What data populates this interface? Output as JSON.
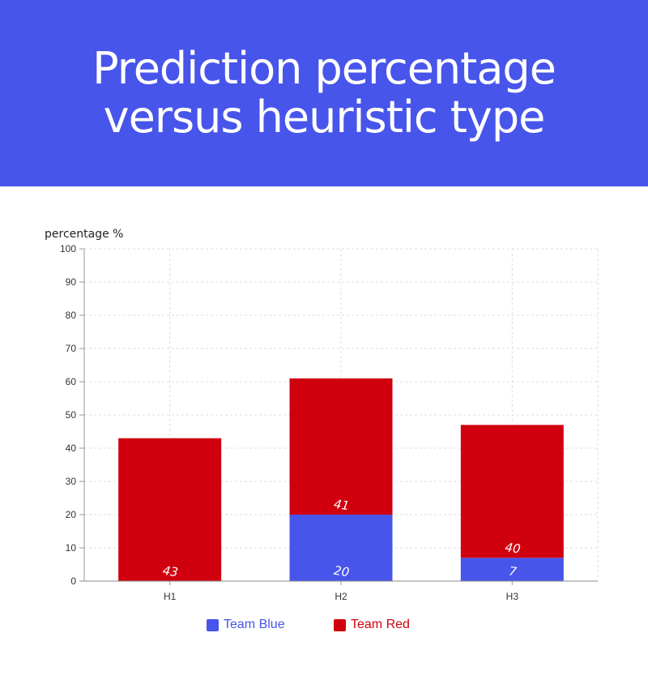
{
  "header": {
    "title": "Prediction percentage versus heuristic type"
  },
  "chart_data": {
    "type": "bar",
    "stacked": true,
    "ylabel": "percentage %",
    "xlabel": "",
    "ylim": [
      0,
      100
    ],
    "yticks": [
      0,
      10,
      20,
      30,
      40,
      50,
      60,
      70,
      80,
      90,
      100
    ],
    "grid": true,
    "legend_position": "bottom",
    "categories": [
      "H1",
      "H2",
      "H3"
    ],
    "series": [
      {
        "name": "Team Blue",
        "color": "#4755ea",
        "values": [
          0,
          20,
          7
        ]
      },
      {
        "name": "Team Red",
        "color": "#d0000f",
        "values": [
          43,
          41,
          40
        ]
      }
    ]
  }
}
